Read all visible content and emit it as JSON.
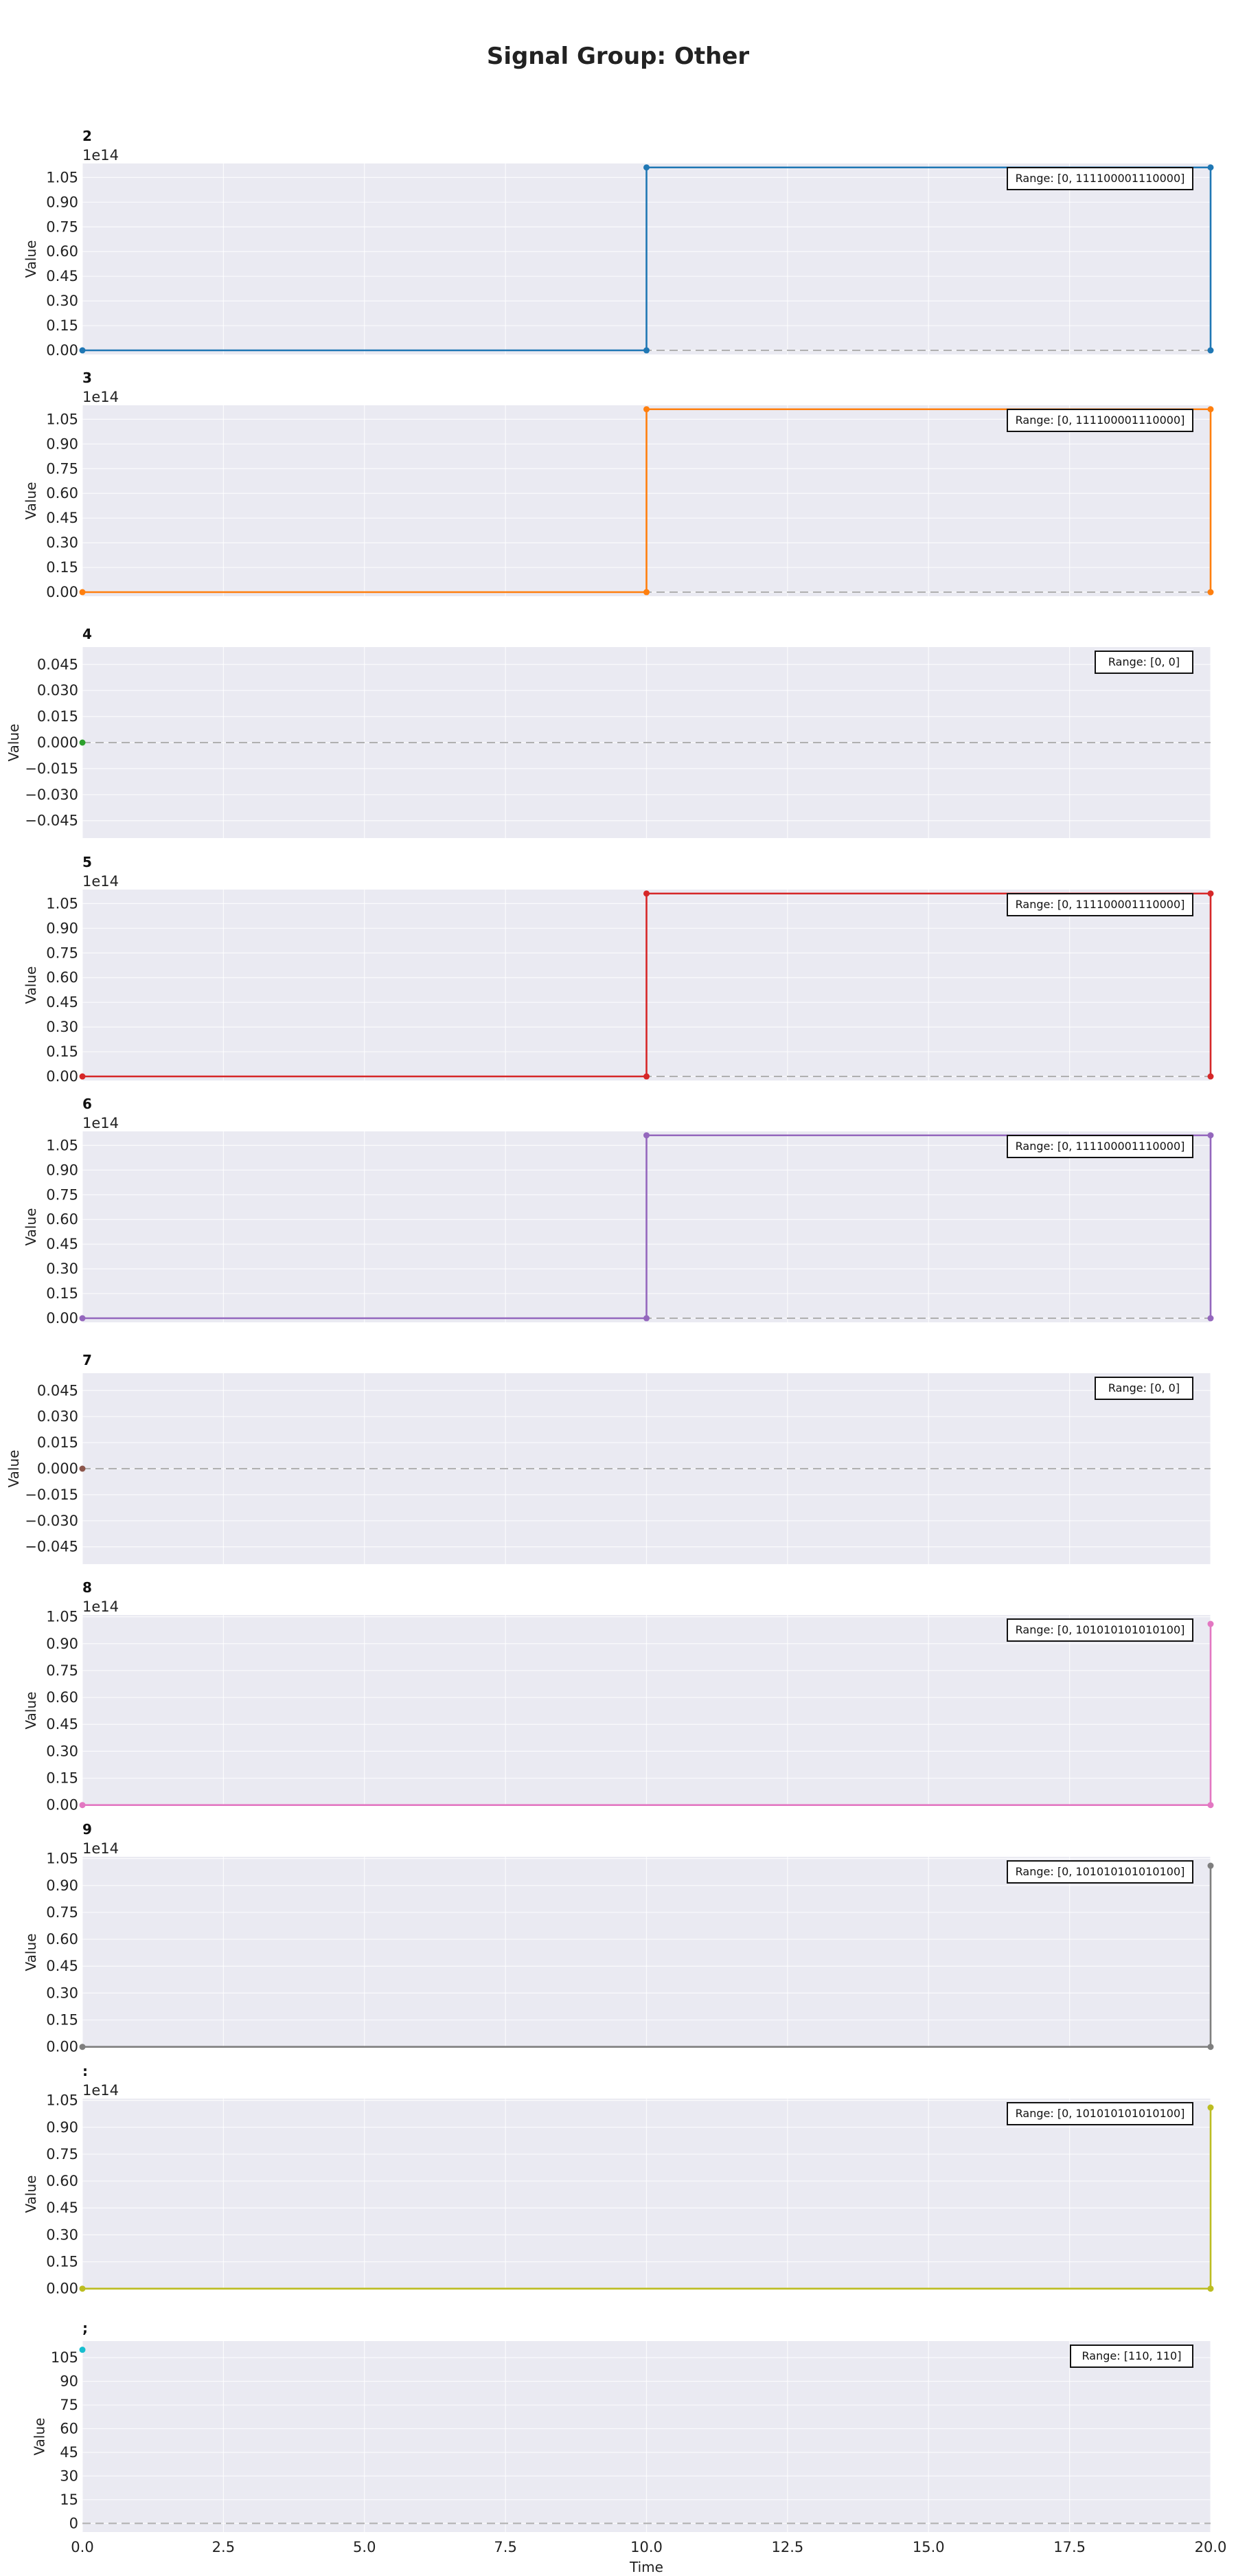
{
  "figure": {
    "title": "Signal Group: Other"
  },
  "chart_data": [
    {
      "type": "line",
      "title": "2",
      "ylabel": "Value",
      "xlabel": "",
      "offset_text": "1e14",
      "color": "#1f77b4",
      "x": [
        0,
        10,
        20
      ],
      "y": [
        0,
        111100001110000,
        0
      ],
      "step": "post",
      "xlim": [
        0,
        20
      ],
      "ylim": [
        -2500000000000,
        113500000000000
      ],
      "yticks": [
        0,
        15000000000000,
        30000000000000,
        45000000000000,
        60000000000000,
        75000000000000,
        90000000000000,
        105000000000000
      ],
      "ytick_labels": [
        "0.00",
        "0.15",
        "0.30",
        "0.45",
        "0.60",
        "0.75",
        "0.90",
        "1.05"
      ],
      "annotation": "Range: [0, 111100001110000]",
      "zero_line": true,
      "grid": true
    },
    {
      "type": "line",
      "title": "3",
      "ylabel": "Value",
      "xlabel": "",
      "offset_text": "1e14",
      "color": "#ff7f0e",
      "x": [
        0,
        10,
        20
      ],
      "y": [
        0,
        111100001110000,
        0
      ],
      "step": "post",
      "xlim": [
        0,
        20
      ],
      "ylim": [
        -2500000000000,
        113500000000000
      ],
      "yticks": [
        0,
        15000000000000,
        30000000000000,
        45000000000000,
        60000000000000,
        75000000000000,
        90000000000000,
        105000000000000
      ],
      "ytick_labels": [
        "0.00",
        "0.15",
        "0.30",
        "0.45",
        "0.60",
        "0.75",
        "0.90",
        "1.05"
      ],
      "annotation": "Range: [0, 111100001110000]",
      "zero_line": true,
      "grid": true
    },
    {
      "type": "line",
      "title": "4",
      "ylabel": "Value",
      "xlabel": "",
      "offset_text": "",
      "color": "#2ca02c",
      "x": [
        0
      ],
      "y": [
        0
      ],
      "step": "post",
      "xlim": [
        0,
        20
      ],
      "ylim": [
        -0.055,
        0.055
      ],
      "yticks": [
        -0.045,
        -0.03,
        -0.015,
        0,
        0.015,
        0.03,
        0.045
      ],
      "ytick_labels": [
        "−0.045",
        "−0.030",
        "−0.015",
        "0.000",
        "0.015",
        "0.030",
        "0.045"
      ],
      "annotation": "Range: [0, 0]",
      "zero_line": true,
      "grid": true
    },
    {
      "type": "line",
      "title": "5",
      "ylabel": "Value",
      "xlabel": "",
      "offset_text": "1e14",
      "color": "#d62728",
      "x": [
        0,
        10,
        20
      ],
      "y": [
        0,
        111100001110000,
        0
      ],
      "step": "post",
      "xlim": [
        0,
        20
      ],
      "ylim": [
        -2500000000000,
        113500000000000
      ],
      "yticks": [
        0,
        15000000000000,
        30000000000000,
        45000000000000,
        60000000000000,
        75000000000000,
        90000000000000,
        105000000000000
      ],
      "ytick_labels": [
        "0.00",
        "0.15",
        "0.30",
        "0.45",
        "0.60",
        "0.75",
        "0.90",
        "1.05"
      ],
      "annotation": "Range: [0, 111100001110000]",
      "zero_line": true,
      "grid": true
    },
    {
      "type": "line",
      "title": "6",
      "ylabel": "Value",
      "xlabel": "",
      "offset_text": "1e14",
      "color": "#9467bd",
      "x": [
        0,
        10,
        20
      ],
      "y": [
        0,
        111100001110000,
        0
      ],
      "step": "post",
      "xlim": [
        0,
        20
      ],
      "ylim": [
        -2500000000000,
        113500000000000
      ],
      "yticks": [
        0,
        15000000000000,
        30000000000000,
        45000000000000,
        60000000000000,
        75000000000000,
        90000000000000,
        105000000000000
      ],
      "ytick_labels": [
        "0.00",
        "0.15",
        "0.30",
        "0.45",
        "0.60",
        "0.75",
        "0.90",
        "1.05"
      ],
      "annotation": "Range: [0, 111100001110000]",
      "zero_line": true,
      "grid": true
    },
    {
      "type": "line",
      "title": "7",
      "ylabel": "Value",
      "xlabel": "",
      "offset_text": "",
      "color": "#8c564b",
      "x": [
        0
      ],
      "y": [
        0
      ],
      "step": "post",
      "xlim": [
        0,
        20
      ],
      "ylim": [
        -0.055,
        0.055
      ],
      "yticks": [
        -0.045,
        -0.03,
        -0.015,
        0,
        0.015,
        0.03,
        0.045
      ],
      "ytick_labels": [
        "−0.045",
        "−0.030",
        "−0.015",
        "0.000",
        "0.015",
        "0.030",
        "0.045"
      ],
      "annotation": "Range: [0, 0]",
      "zero_line": true,
      "grid": true
    },
    {
      "type": "line",
      "title": "8",
      "ylabel": "Value",
      "xlabel": "",
      "offset_text": "1e14",
      "color": "#e377c2",
      "x": [
        0,
        20
      ],
      "y": [
        0,
        101010101010100
      ],
      "step": "post",
      "xlim": [
        0,
        20
      ],
      "ylim": [
        -500000000000,
        106000000000000
      ],
      "yticks": [
        0,
        15000000000000,
        30000000000000,
        45000000000000,
        60000000000000,
        75000000000000,
        90000000000000,
        105000000000000
      ],
      "ytick_labels": [
        "0.00",
        "0.15",
        "0.30",
        "0.45",
        "0.60",
        "0.75",
        "0.90",
        "1.05"
      ],
      "annotation": "Range: [0, 101010101010100]",
      "zero_line": true,
      "grid": true
    },
    {
      "type": "line",
      "title": "9",
      "ylabel": "Value",
      "xlabel": "",
      "offset_text": "1e14",
      "color": "#7f7f7f",
      "x": [
        0,
        20
      ],
      "y": [
        0,
        101010101010100
      ],
      "step": "post",
      "xlim": [
        0,
        20
      ],
      "ylim": [
        -500000000000,
        106000000000000
      ],
      "yticks": [
        0,
        15000000000000,
        30000000000000,
        45000000000000,
        60000000000000,
        75000000000000,
        90000000000000,
        105000000000000
      ],
      "ytick_labels": [
        "0.00",
        "0.15",
        "0.30",
        "0.45",
        "0.60",
        "0.75",
        "0.90",
        "1.05"
      ],
      "annotation": "Range: [0, 101010101010100]",
      "zero_line": true,
      "grid": true
    },
    {
      "type": "line",
      "title": ":",
      "ylabel": "Value",
      "xlabel": "",
      "offset_text": "1e14",
      "color": "#bcbd22",
      "x": [
        0,
        20
      ],
      "y": [
        0,
        101010101010100
      ],
      "step": "post",
      "xlim": [
        0,
        20
      ],
      "ylim": [
        -500000000000,
        106000000000000
      ],
      "yticks": [
        0,
        15000000000000,
        30000000000000,
        45000000000000,
        60000000000000,
        75000000000000,
        90000000000000,
        105000000000000
      ],
      "ytick_labels": [
        "0.00",
        "0.15",
        "0.30",
        "0.45",
        "0.60",
        "0.75",
        "0.90",
        "1.05"
      ],
      "annotation": "Range: [0, 101010101010100]",
      "zero_line": true,
      "grid": true
    },
    {
      "type": "line",
      "title": ";",
      "ylabel": "Value",
      "xlabel": "Time",
      "offset_text": "",
      "color": "#17becf",
      "x": [
        0
      ],
      "y": [
        110
      ],
      "step": "post",
      "xlim": [
        0,
        20
      ],
      "ylim": [
        -5.5,
        115.5
      ],
      "yticks": [
        0,
        15,
        30,
        45,
        60,
        75,
        90,
        105
      ],
      "ytick_labels": [
        "0",
        "15",
        "30",
        "45",
        "60",
        "75",
        "90",
        "105"
      ],
      "xticks": [
        0,
        2.5,
        5,
        7.5,
        10,
        12.5,
        15,
        17.5,
        20
      ],
      "xtick_labels": [
        "0.0",
        "2.5",
        "5.0",
        "7.5",
        "10.0",
        "12.5",
        "15.0",
        "17.5",
        "20.0"
      ],
      "annotation": "Range: [110, 110]",
      "zero_line": true,
      "grid": true
    }
  ]
}
